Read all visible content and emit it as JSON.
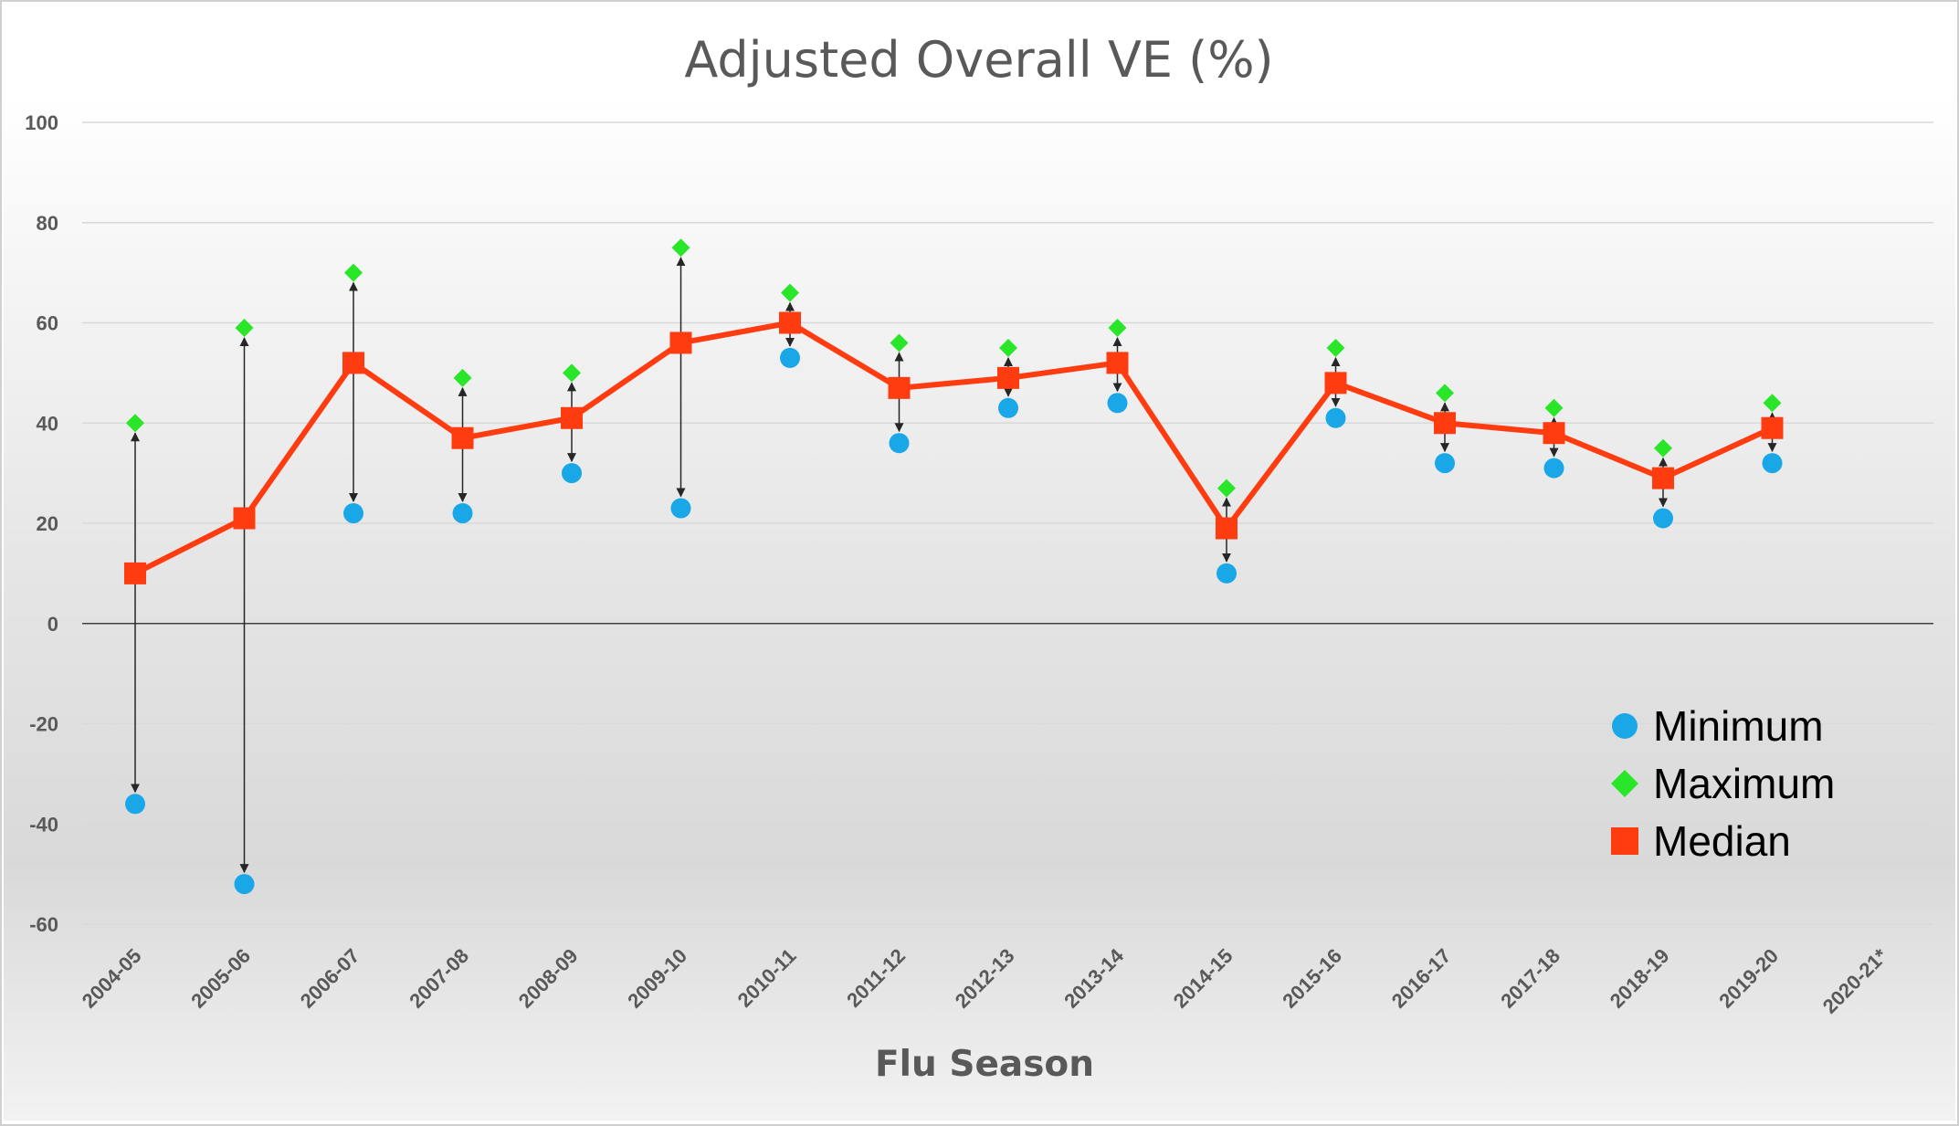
{
  "chart_data": {
    "type": "line",
    "title": "Adjusted Overall VE (%)",
    "xlabel": "Flu Season",
    "ylabel": "",
    "ylim": [
      -60,
      100
    ],
    "yticks": [
      100,
      80,
      60,
      40,
      20,
      0,
      -20,
      -40,
      -60
    ],
    "grid": true,
    "legend_position": "bottom-right",
    "categories": [
      "2004-05",
      "2005-06",
      "2006-07",
      "2007-08",
      "2008-09",
      "2009-10",
      "2010-11",
      "2011-12",
      "2012-13",
      "2013-14",
      "2014-15",
      "2015-16",
      "2016-17",
      "2017-18",
      "2018-19",
      "2019-20",
      "2020-21*"
    ],
    "series": [
      {
        "name": "Minimum",
        "color": "#1aa7e8",
        "marker": "circle",
        "values": [
          -36,
          -52,
          22,
          22,
          30,
          23,
          53,
          36,
          43,
          44,
          10,
          41,
          32,
          31,
          21,
          32,
          null
        ]
      },
      {
        "name": "Maximum",
        "color": "#29e629",
        "marker": "diamond",
        "values": [
          40,
          59,
          70,
          49,
          50,
          75,
          66,
          56,
          55,
          59,
          27,
          55,
          46,
          43,
          35,
          44,
          null
        ]
      },
      {
        "name": "Median",
        "color": "#ff3b10",
        "marker": "square",
        "values": [
          10,
          21,
          52,
          37,
          41,
          56,
          60,
          47,
          49,
          52,
          19,
          48,
          40,
          38,
          29,
          39,
          null
        ]
      }
    ],
    "colors": {
      "line": "#ff3b10",
      "grid": "#d9d9d9",
      "zero_line": "#404040",
      "arrow": "#262626",
      "text": "#595959"
    }
  }
}
